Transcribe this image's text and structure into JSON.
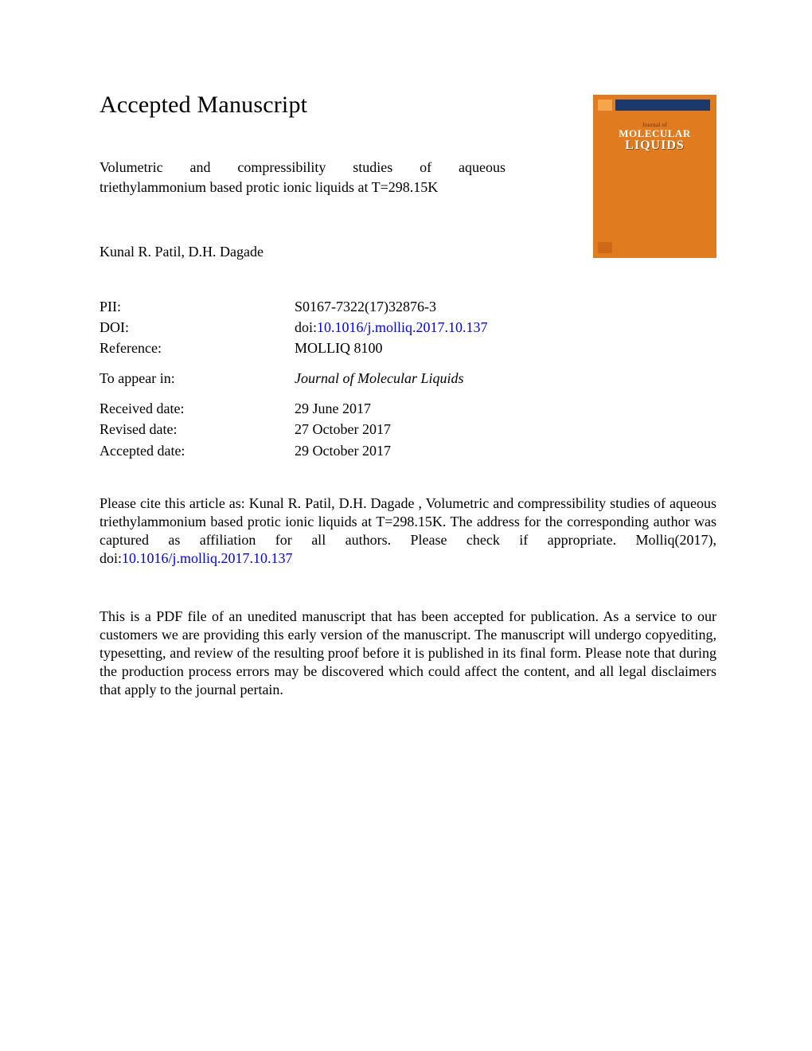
{
  "heading": "Accepted Manuscript",
  "article": {
    "title_line1": "Volumetric and compressibility studies of aqueous",
    "title_line2": "triethylammonium based protic ionic liquids at T=298.15K",
    "authors": "Kunal R. Patil, D.H. Dagade"
  },
  "journal_cover": {
    "bg_color": "#e07b1f",
    "stripe_color": "#1a3a6e",
    "journal_of": "Journal of",
    "molecular": "MOLECULAR",
    "liquids": "LIQUIDS"
  },
  "meta": {
    "pii_label": "PII:",
    "pii_value": "S0167-7322(17)32876-3",
    "doi_label": "DOI:",
    "doi_prefix": "doi:",
    "doi_link": "10.1016/j.molliq.2017.10.137",
    "reference_label": "Reference:",
    "reference_value": "MOLLIQ 8100",
    "appear_label": "To appear in:",
    "appear_value": "Journal of Molecular Liquids",
    "received_label": "Received date:",
    "received_value": "29 June 2017",
    "revised_label": "Revised date:",
    "revised_value": "27 October 2017",
    "accepted_label": "Accepted date:",
    "accepted_value": "29 October 2017"
  },
  "citation": {
    "text_before": "Please cite this article as: Kunal R. Patil, D.H. Dagade , Volumetric and compressibility studies of aqueous triethylammonium based protic ionic liquids at T=298.15K. The address for the corresponding author was captured as affiliation for all authors. Please check if appropriate. Molliq(2017), doi:",
    "link": "10.1016/j.molliq.2017.10.137"
  },
  "disclaimer": "This is a PDF file of an unedited manuscript that has been accepted for publication. As a service to our customers we are providing this early version of the manuscript. The manuscript will undergo copyediting, typesetting, and review of the resulting proof before it is published in its final form. Please note that during the production process errors may be discovered which could affect the content, and all legal disclaimers that apply to the journal pertain.",
  "colors": {
    "link": "#0000ee",
    "text": "#000000",
    "background": "#ffffff"
  },
  "fonts": {
    "body_family": "Times New Roman",
    "heading_size_pt": 22,
    "body_size_pt": 13
  }
}
